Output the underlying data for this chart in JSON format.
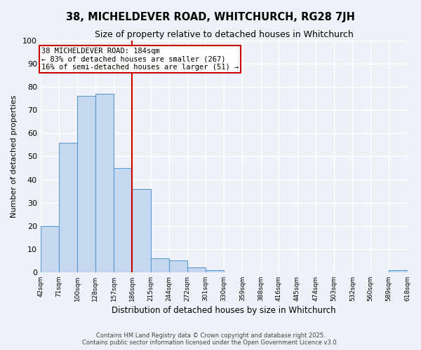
{
  "title": "38, MICHELDEVER ROAD, WHITCHURCH, RG28 7JH",
  "subtitle": "Size of property relative to detached houses in Whitchurch",
  "xlabel": "Distribution of detached houses by size in Whitchurch",
  "ylabel": "Number of detached properties",
  "bar_edges": [
    42,
    71,
    100,
    128,
    157,
    186,
    215,
    244,
    272,
    301,
    330,
    359,
    388,
    416,
    445,
    474,
    503,
    532,
    560,
    589,
    618
  ],
  "bar_heights": [
    20,
    56,
    76,
    77,
    45,
    36,
    6,
    5,
    2,
    1,
    0,
    0,
    0,
    0,
    0,
    0,
    0,
    0,
    0,
    1
  ],
  "bar_color": "#c5d8f0",
  "bar_edgecolor": "#5b9bd5",
  "vline_x": 186,
  "vline_color": "#cc0000",
  "annotation_line1": "38 MICHELDEVER ROAD: 184sqm",
  "annotation_line2": "← 83% of detached houses are smaller (267)",
  "annotation_line3": "16% of semi-detached houses are larger (51) →",
  "annotation_box_edgecolor": "#cc0000",
  "ylim": [
    0,
    100
  ],
  "yticks": [
    0,
    10,
    20,
    30,
    40,
    50,
    60,
    70,
    80,
    90,
    100
  ],
  "xtick_labels": [
    "42sqm",
    "71sqm",
    "100sqm",
    "128sqm",
    "157sqm",
    "186sqm",
    "215sqm",
    "244sqm",
    "272sqm",
    "301sqm",
    "330sqm",
    "359sqm",
    "388sqm",
    "416sqm",
    "445sqm",
    "474sqm",
    "503sqm",
    "532sqm",
    "560sqm",
    "589sqm",
    "618sqm"
  ],
  "background_color": "#eef2f8",
  "grid_color": "#ffffff",
  "footer_line1": "Contains HM Land Registry data © Crown copyright and database right 2025.",
  "footer_line2": "Contains public sector information licensed under the Open Government Licence v3.0."
}
